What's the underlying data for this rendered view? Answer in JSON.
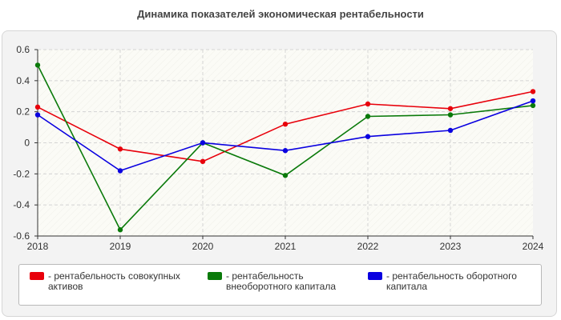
{
  "chart_data": {
    "type": "line",
    "title": "Динамика показателей экономическая рентабельности",
    "x": [
      "2018",
      "2019",
      "2020",
      "2021",
      "2022",
      "2023",
      "2024"
    ],
    "y_ticks": [
      "0.6",
      "0.4",
      "0.2",
      "0",
      "-0.2",
      "-0.4",
      "-0.6"
    ],
    "ylim": [
      -0.6,
      0.6
    ],
    "grid": true,
    "legend_position": "bottom",
    "series": [
      {
        "name": "- рентабельность совокупных активов",
        "color": "#e8000b",
        "values": [
          0.23,
          -0.04,
          -0.12,
          0.12,
          0.25,
          0.22,
          0.33
        ]
      },
      {
        "name": "- рентабельность внеоборотного капитала",
        "color": "#0a7a0a",
        "values": [
          0.5,
          -0.56,
          0.0,
          -0.21,
          0.17,
          0.18,
          0.24
        ]
      },
      {
        "name": "- рентабельность оборотного капитала",
        "color": "#0a00e0",
        "values": [
          0.18,
          -0.18,
          0.0,
          -0.05,
          0.04,
          0.08,
          0.27
        ]
      }
    ]
  }
}
